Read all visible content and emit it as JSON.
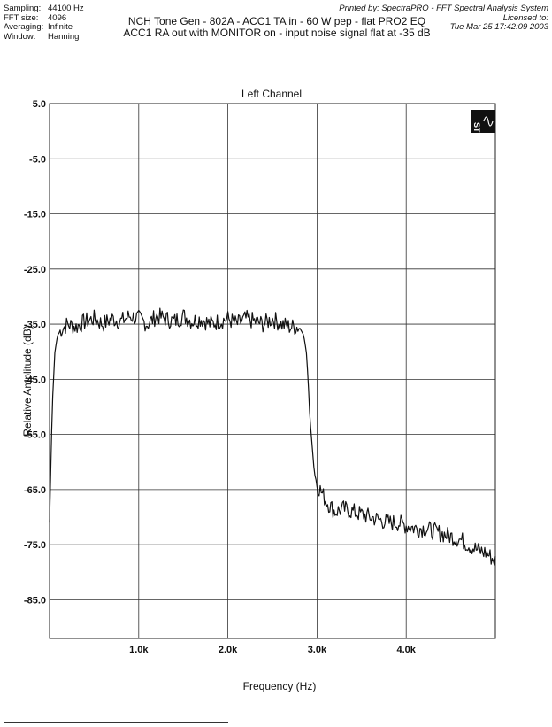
{
  "header": {
    "settings": [
      {
        "key": "Sampling:",
        "value": "44100 Hz"
      },
      {
        "key": "FFT size:",
        "value": "4096"
      },
      {
        "key": "Averaging:",
        "value": "Infinite"
      },
      {
        "key": "Window:",
        "value": "Hanning"
      }
    ],
    "title_line1": "NCH Tone Gen - 802A - ACC1 TA in - 60 W pep - flat PRO2 EQ",
    "title_line2": "ACC1 RA out with MONITOR on - input noise signal flat at -35 dB",
    "printed_by": "Printed by: SpectraPRO - FFT Spectral Analysis System",
    "licensed_to": "Licensed to:",
    "timestamp": "Tue Mar 25 17:42:09 2003"
  },
  "logo": {
    "text": "ST",
    "icon": "spectrapro-logo-icon"
  },
  "colors": {
    "trace": "#111111",
    "grid": "#333333",
    "background": "#ffffff"
  },
  "chart_data": {
    "type": "line",
    "title": "Left Channel",
    "xlabel": "Frequency (Hz)",
    "ylabel": "Relative Amplitude (dB)",
    "xlim": [
      0,
      5000
    ],
    "ylim": [
      -92,
      5
    ],
    "grid": true,
    "x_ticks": [
      1000,
      2000,
      3000,
      4000
    ],
    "x_tick_labels": [
      "1.0k",
      "2.0k",
      "3.0k",
      "4.0k"
    ],
    "y_ticks": [
      5,
      -5,
      -15,
      -25,
      -35,
      -45,
      -55,
      -65,
      -75,
      -85
    ],
    "y_tick_labels": [
      "5.0",
      "-5.0",
      "-15.0",
      "-25.0",
      "-35.0",
      "-45.0",
      "-55.0",
      "-65.0",
      "-75.0",
      "-85.0"
    ],
    "series": [
      {
        "x": [
          0,
          30,
          60,
          90,
          130,
          200,
          300,
          400,
          500,
          600,
          700,
          800,
          900,
          1000,
          1100,
          1200,
          1300,
          1400,
          1500,
          1600,
          1700,
          1800,
          1900,
          2000,
          2100,
          2200,
          2300,
          2400,
          2500,
          2600,
          2700,
          2800,
          2850,
          2880,
          2900,
          2920,
          2950,
          2970,
          3000,
          3100,
          3200,
          3300,
          3400,
          3500,
          3600,
          3700,
          3800,
          3900,
          4000,
          4100,
          4200,
          4300,
          4400,
          4500,
          4600,
          4700,
          4800,
          4900,
          5000
        ],
        "values": [
          -71,
          -50,
          -40,
          -37,
          -36,
          -35,
          -35.5,
          -34.5,
          -34,
          -35,
          -34,
          -34.5,
          -33.5,
          -34,
          -35,
          -33.5,
          -34,
          -34.5,
          -33.5,
          -34.5,
          -34,
          -35,
          -34.5,
          -34,
          -35,
          -34,
          -34.5,
          -35,
          -34,
          -35,
          -35.5,
          -35.5,
          -37,
          -40,
          -45,
          -52,
          -58,
          -62,
          -64,
          -67,
          -69,
          -68.5,
          -69,
          -69.5,
          -70,
          -70.5,
          -71,
          -71,
          -71.5,
          -72,
          -72,
          -72.5,
          -73,
          -73.5,
          -74,
          -75,
          -76,
          -76.5,
          -78
        ]
      }
    ]
  }
}
